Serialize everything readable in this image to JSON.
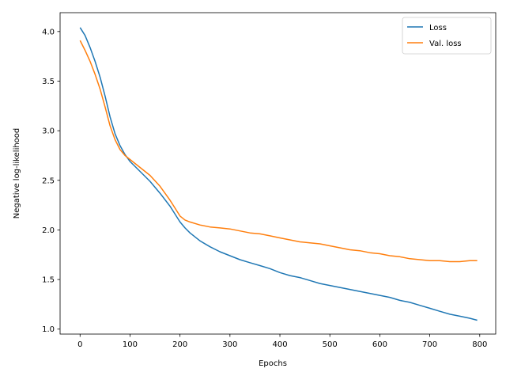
{
  "chart_data": {
    "type": "line",
    "title": "",
    "xlabel": "Epochs",
    "ylabel": "Negative log-likelihood",
    "xlim": [
      -40,
      832
    ],
    "ylim": [
      0.95,
      4.19
    ],
    "xticks": [
      0,
      100,
      200,
      300,
      400,
      500,
      600,
      700,
      800
    ],
    "yticks": [
      1.0,
      1.5,
      2.0,
      2.5,
      3.0,
      3.5,
      4.0
    ],
    "xtick_labels": [
      "0",
      "100",
      "200",
      "300",
      "400",
      "500",
      "600",
      "700",
      "800"
    ],
    "ytick_labels": [
      "1.0",
      "1.5",
      "2.0",
      "2.5",
      "3.0",
      "3.5",
      "4.0"
    ],
    "grid": false,
    "legend_position": "top-right",
    "series": [
      {
        "name": "Loss",
        "color": "#1f77b4",
        "x": [
          0,
          10,
          20,
          30,
          40,
          50,
          60,
          70,
          80,
          90,
          100,
          120,
          140,
          160,
          180,
          200,
          210,
          220,
          240,
          260,
          280,
          300,
          320,
          340,
          360,
          380,
          400,
          420,
          440,
          460,
          480,
          500,
          520,
          540,
          560,
          580,
          600,
          620,
          640,
          660,
          680,
          700,
          720,
          740,
          760,
          780,
          795
        ],
        "y": [
          4.04,
          3.96,
          3.84,
          3.7,
          3.54,
          3.35,
          3.14,
          2.97,
          2.85,
          2.76,
          2.69,
          2.59,
          2.49,
          2.37,
          2.24,
          2.08,
          2.02,
          1.97,
          1.89,
          1.83,
          1.78,
          1.74,
          1.7,
          1.67,
          1.64,
          1.61,
          1.57,
          1.54,
          1.52,
          1.49,
          1.46,
          1.44,
          1.42,
          1.4,
          1.38,
          1.36,
          1.34,
          1.32,
          1.29,
          1.27,
          1.24,
          1.21,
          1.18,
          1.15,
          1.13,
          1.11,
          1.09
        ]
      },
      {
        "name": "Val. loss",
        "color": "#ff7f0e",
        "x": [
          0,
          10,
          20,
          30,
          40,
          50,
          60,
          70,
          80,
          90,
          100,
          120,
          140,
          160,
          180,
          200,
          210,
          220,
          240,
          260,
          280,
          300,
          320,
          340,
          360,
          380,
          400,
          420,
          440,
          460,
          480,
          500,
          520,
          540,
          560,
          580,
          600,
          620,
          640,
          660,
          680,
          700,
          720,
          740,
          760,
          780,
          795
        ],
        "y": [
          3.91,
          3.81,
          3.7,
          3.57,
          3.42,
          3.24,
          3.05,
          2.91,
          2.81,
          2.75,
          2.71,
          2.63,
          2.55,
          2.44,
          2.3,
          2.14,
          2.1,
          2.08,
          2.05,
          2.03,
          2.02,
          2.01,
          1.99,
          1.97,
          1.96,
          1.94,
          1.92,
          1.9,
          1.88,
          1.87,
          1.86,
          1.84,
          1.82,
          1.8,
          1.79,
          1.77,
          1.76,
          1.74,
          1.73,
          1.71,
          1.7,
          1.69,
          1.69,
          1.68,
          1.68,
          1.69,
          1.69
        ]
      }
    ]
  }
}
